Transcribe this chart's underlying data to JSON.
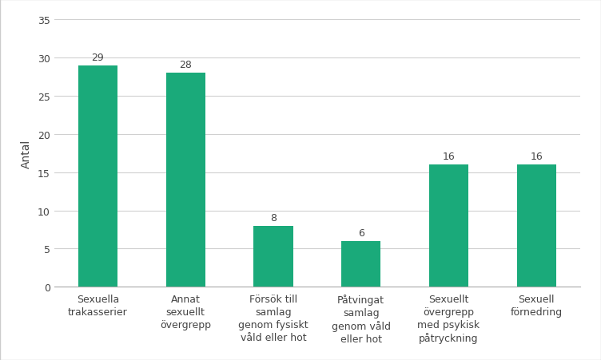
{
  "categories": [
    "Sexuella\ntrakasserier",
    "Annat\nsexuellt\növergrepp",
    "Försök till\nsamlag\ngenom fysiskt\nvåld eller hot",
    "Påtvingat\nsamlag\ngenom våld\neller hot",
    "Sexuellt\növergrepp\nmed psykisk\npåtryckning",
    "Sexuell\nförnedring"
  ],
  "values": [
    29,
    28,
    8,
    6,
    16,
    16
  ],
  "bar_color": "#1aaa7a",
  "ylabel": "Antal",
  "ylim": [
    0,
    35
  ],
  "yticks": [
    0,
    5,
    10,
    15,
    20,
    25,
    30,
    35
  ],
  "tick_fontsize": 9,
  "ylabel_fontsize": 10,
  "value_fontsize": 9,
  "background_color": "#ffffff",
  "plot_bg_color": "#ffffff",
  "bar_width": 0.45,
  "border_color": "#cccccc"
}
